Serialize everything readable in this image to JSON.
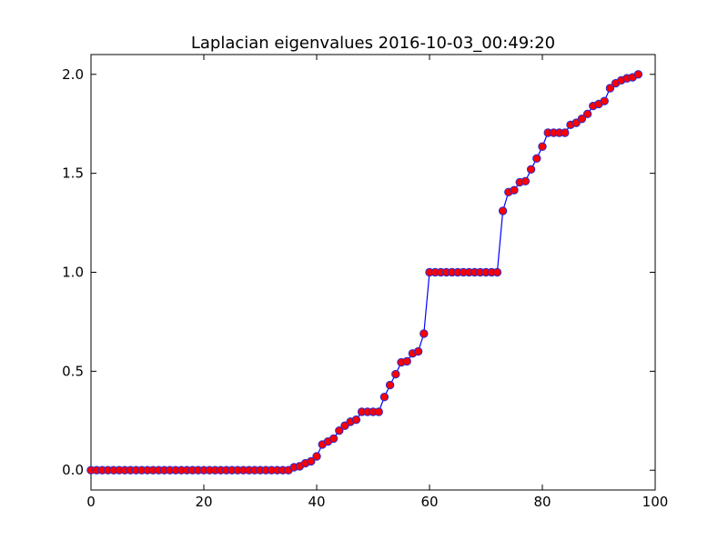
{
  "colors": {
    "line": "#0000ff",
    "marker_fill": "#ff0000",
    "marker_edge": "#2b2bd0",
    "axes": "#000000",
    "background": "#ffffff"
  },
  "chart_data": {
    "type": "line",
    "title": "Laplacian eigenvalues 2016-10-03_00:49:20",
    "xlabel": "",
    "ylabel": "",
    "xlim": [
      0,
      100
    ],
    "ylim": [
      -0.1,
      2.1
    ],
    "grid": false,
    "xticks": [
      0,
      20,
      40,
      60,
      80,
      100
    ],
    "yticks": [
      0.0,
      0.5,
      1.0,
      1.5,
      2.0
    ],
    "xtick_labels": [
      "0",
      "20",
      "40",
      "60",
      "80",
      "100"
    ],
    "ytick_labels": [
      "0.0",
      "0.5",
      "1.0",
      "1.5",
      "2.0"
    ],
    "marker": "circle",
    "series": [
      {
        "name": "",
        "x": [
          0,
          1,
          2,
          3,
          4,
          5,
          6,
          7,
          8,
          9,
          10,
          11,
          12,
          13,
          14,
          15,
          16,
          17,
          18,
          19,
          20,
          21,
          22,
          23,
          24,
          25,
          26,
          27,
          28,
          29,
          30,
          31,
          32,
          33,
          34,
          35,
          36,
          37,
          38,
          39,
          40,
          41,
          42,
          43,
          44,
          45,
          46,
          47,
          48,
          49,
          50,
          51,
          52,
          53,
          54,
          55,
          56,
          57,
          58,
          59,
          60,
          61,
          62,
          63,
          64,
          65,
          66,
          67,
          68,
          69,
          70,
          71,
          72,
          73,
          74,
          75,
          76,
          77,
          78,
          79,
          80,
          81,
          82,
          83,
          84,
          85,
          86,
          87,
          88,
          89,
          90,
          91,
          92,
          93,
          94,
          95,
          96,
          97
        ],
        "y": [
          0,
          0,
          0,
          0,
          0,
          0,
          0,
          0,
          0,
          0,
          0,
          0,
          0,
          0,
          0,
          0,
          0,
          0,
          0,
          0,
          0,
          0,
          0,
          0,
          0,
          0,
          0,
          0,
          0,
          0,
          0,
          0,
          0,
          0,
          0,
          0,
          0.015,
          0.02,
          0.035,
          0.045,
          0.07,
          0.13,
          0.145,
          0.16,
          0.2,
          0.225,
          0.245,
          0.255,
          0.295,
          0.295,
          0.295,
          0.295,
          0.37,
          0.43,
          0.485,
          0.545,
          0.55,
          0.59,
          0.6,
          0.69,
          1.0,
          1.0,
          1.0,
          1.0,
          1.0,
          1.0,
          1.0,
          1.0,
          1.0,
          1.0,
          1.0,
          1.0,
          1.0,
          1.31,
          1.405,
          1.415,
          1.455,
          1.46,
          1.52,
          1.575,
          1.635,
          1.705,
          1.705,
          1.705,
          1.705,
          1.745,
          1.755,
          1.775,
          1.8,
          1.84,
          1.85,
          1.865,
          1.93,
          1.955,
          1.97,
          1.98,
          1.985,
          2.0
        ]
      }
    ]
  }
}
